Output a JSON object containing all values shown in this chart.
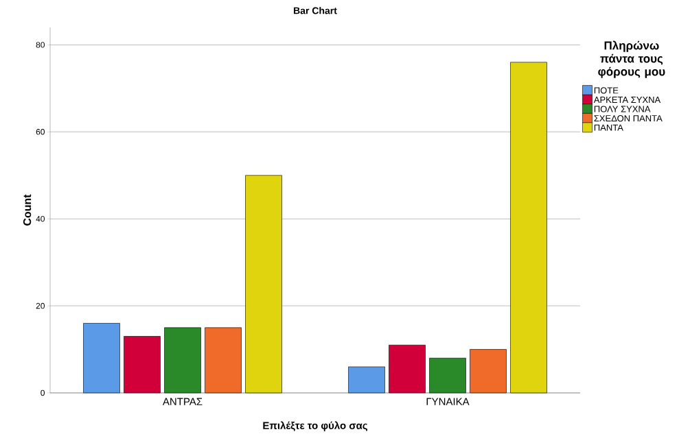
{
  "chart_data": {
    "type": "bar",
    "title": "Bar Chart",
    "xlabel": "Επιλέξτε το φύλο σας",
    "ylabel": "Count",
    "legend_title": "Πληρώνω πάντα τους φόρους μου",
    "categories": [
      "ΑΝΤΡΑΣ",
      "ΓΥΝΑΙΚΑ"
    ],
    "series": [
      {
        "name": "ΠΟΤΕ",
        "color": "#5a9ae6",
        "values": [
          16,
          6
        ]
      },
      {
        "name": "ΑΡΚΕΤΑ ΣΥΧΝΑ",
        "color": "#d1003a",
        "values": [
          13,
          11
        ]
      },
      {
        "name": "ΠΟΛΥ ΣΥΧΝΑ",
        "color": "#2a8a2a",
        "values": [
          15,
          8
        ]
      },
      {
        "name": "ΣΧΕΔΟΝ ΠΑΝΤΑ",
        "color": "#f06a2a",
        "values": [
          15,
          10
        ]
      },
      {
        "name": "ΠΑΝΤΑ",
        "color": "#e0d40e",
        "values": [
          50,
          76
        ]
      }
    ],
    "ylim": [
      0,
      84
    ],
    "yticks": [
      0,
      20,
      40,
      60,
      80
    ],
    "grid": "y",
    "legend": "top right"
  }
}
